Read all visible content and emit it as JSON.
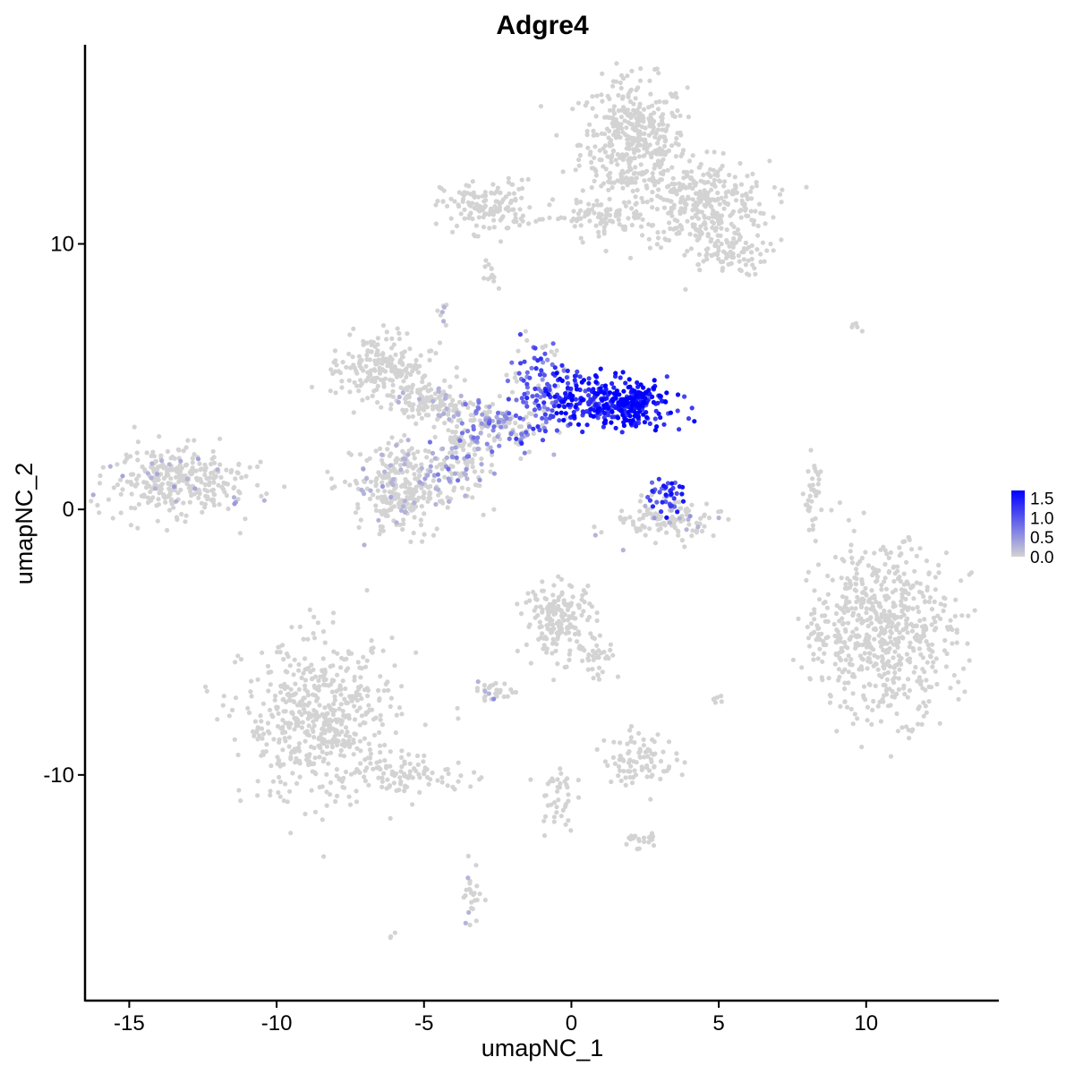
{
  "chart_data": {
    "type": "scatter",
    "title": "Adgre4",
    "xlabel": "umapNC_1",
    "ylabel": "umapNC_2",
    "xlim": [
      -16.5,
      14.5
    ],
    "ylim": [
      -18.5,
      17.5
    ],
    "x_ticks": [
      -15,
      -10,
      -5,
      0,
      5,
      10
    ],
    "x_tick_labels": [
      "-15",
      "-10",
      "-5",
      "0",
      "5",
      "10"
    ],
    "y_ticks": [
      -10,
      0,
      10
    ],
    "y_tick_labels": [
      "-10",
      "0",
      "10"
    ],
    "grid": false,
    "legend": {
      "position": "right",
      "type": "colorbar",
      "range": [
        0,
        1.7
      ],
      "ticks": [
        0.0,
        0.5,
        1.0,
        1.5
      ],
      "tick_labels": [
        "0.0",
        "0.5",
        "1.0",
        "1.5"
      ],
      "low_color": "#d3d3d3",
      "high_color": "#0000ff"
    },
    "point_color_low": "#d3d3d3",
    "point_color_high": "#0000ff",
    "clusters": [
      {
        "name": "top-right-upper",
        "cx": 2.1,
        "cy": 13.8,
        "sx": 0.9,
        "sy": 1.2,
        "n": 420,
        "expr": 0
      },
      {
        "name": "top-right-lower",
        "cx": 4.5,
        "cy": 11.5,
        "sx": 1.1,
        "sy": 0.8,
        "n": 320,
        "expr": 0
      },
      {
        "name": "top-right-tail",
        "cx": 5.2,
        "cy": 9.6,
        "sx": 0.7,
        "sy": 0.4,
        "n": 80,
        "expr": 0
      },
      {
        "name": "top-middle",
        "cx": -2.8,
        "cy": 11.4,
        "sx": 0.8,
        "sy": 0.5,
        "n": 140,
        "expr": 0
      },
      {
        "name": "top-bridge",
        "cx": 0.8,
        "cy": 11.0,
        "sx": 0.9,
        "sy": 0.3,
        "n": 80,
        "expr": 0
      },
      {
        "name": "left-small",
        "cx": -13.3,
        "cy": 1.1,
        "sx": 1.2,
        "sy": 0.6,
        "n": 330,
        "expr": 0.02
      },
      {
        "name": "center-upper-left",
        "cx": -6.4,
        "cy": 5.3,
        "sx": 0.8,
        "sy": 0.6,
        "n": 200,
        "expr": 0
      },
      {
        "name": "center-left-mid",
        "cx": -4.6,
        "cy": 4.0,
        "sx": 0.7,
        "sy": 0.4,
        "n": 140,
        "expr": 0.02
      },
      {
        "name": "center-lower-left",
        "cx": -5.6,
        "cy": 0.8,
        "sx": 0.9,
        "sy": 0.8,
        "n": 320,
        "expr": 0.04
      },
      {
        "name": "trajectory-1",
        "cx": -3.8,
        "cy": 2.0,
        "sx": 0.5,
        "sy": 0.8,
        "n": 120,
        "expr": 0.25
      },
      {
        "name": "trajectory-2",
        "cx": -2.5,
        "cy": 3.2,
        "sx": 0.6,
        "sy": 0.5,
        "n": 120,
        "expr": 0.35
      },
      {
        "name": "trajectory-3",
        "cx": -1.0,
        "cy": 4.5,
        "sx": 0.5,
        "sy": 1.0,
        "n": 130,
        "expr": 0.55
      },
      {
        "name": "high-expr",
        "cx": 1.3,
        "cy": 4.0,
        "sx": 1.0,
        "sy": 0.5,
        "n": 280,
        "expr": 0.85
      },
      {
        "name": "high-core",
        "cx": 2.0,
        "cy": 4.0,
        "sx": 0.4,
        "sy": 0.4,
        "n": 90,
        "expr": 1.0
      },
      {
        "name": "small-ring",
        "cx": 3.3,
        "cy": -0.5,
        "sx": 0.9,
        "sy": 0.4,
        "n": 110,
        "expr": 0.05
      },
      {
        "name": "small-ring-top",
        "cx": 3.2,
        "cy": 0.6,
        "sx": 0.3,
        "sy": 0.4,
        "n": 40,
        "expr": 0.7
      },
      {
        "name": "right-thin",
        "cx": 8.2,
        "cy": 0.5,
        "sx": 0.15,
        "sy": 0.7,
        "n": 35,
        "expr": 0
      },
      {
        "name": "right-big",
        "cx": 10.6,
        "cy": -4.6,
        "sx": 1.2,
        "sy": 1.6,
        "n": 620,
        "expr": 0
      },
      {
        "name": "right-big-left",
        "cx": 8.3,
        "cy": -4.7,
        "sx": 0.2,
        "sy": 0.4,
        "n": 25,
        "expr": 0
      },
      {
        "name": "bottom-middle",
        "cx": -0.4,
        "cy": -4.1,
        "sx": 0.6,
        "sy": 0.7,
        "n": 170,
        "expr": 0
      },
      {
        "name": "bottom-middle-tail",
        "cx": 0.8,
        "cy": -5.4,
        "sx": 0.4,
        "sy": 0.5,
        "n": 40,
        "expr": 0
      },
      {
        "name": "bottom-left-big",
        "cx": -8.5,
        "cy": -8.0,
        "sx": 1.3,
        "sy": 1.5,
        "n": 560,
        "expr": 0
      },
      {
        "name": "bottom-left-tail",
        "cx": -5.3,
        "cy": -10.0,
        "sx": 1.0,
        "sy": 0.3,
        "n": 80,
        "expr": 0
      },
      {
        "name": "bottom-small-1",
        "cx": -2.7,
        "cy": -6.9,
        "sx": 0.4,
        "sy": 0.2,
        "n": 30,
        "expr": 0.1
      },
      {
        "name": "bottom-small-2",
        "cx": 2.3,
        "cy": -9.4,
        "sx": 0.6,
        "sy": 0.5,
        "n": 90,
        "expr": 0
      },
      {
        "name": "bottom-strand",
        "cx": -0.5,
        "cy": -10.8,
        "sx": 0.3,
        "sy": 0.7,
        "n": 40,
        "expr": 0
      },
      {
        "name": "bottom-strand-2",
        "cx": 2.3,
        "cy": -12.4,
        "sx": 0.3,
        "sy": 0.2,
        "n": 20,
        "expr": 0
      },
      {
        "name": "bottom-lower",
        "cx": -3.4,
        "cy": -14.6,
        "sx": 0.2,
        "sy": 0.6,
        "n": 25,
        "expr": 0.05
      },
      {
        "name": "dot-tiny",
        "cx": 5.0,
        "cy": -7.2,
        "sx": 0.1,
        "sy": 0.1,
        "n": 6,
        "expr": 0
      },
      {
        "name": "dot-far-right",
        "cx": 9.7,
        "cy": 6.8,
        "sx": 0.2,
        "sy": 0.1,
        "n": 5,
        "expr": 0
      },
      {
        "name": "dot-bottom",
        "cx": -6.0,
        "cy": -16.0,
        "sx": 0.1,
        "sy": 0.1,
        "n": 3,
        "expr": 0
      },
      {
        "name": "dot-mid-top",
        "cx": -4.4,
        "cy": 7.4,
        "sx": 0.1,
        "sy": 0.2,
        "n": 8,
        "expr": 0.1
      },
      {
        "name": "dot-top-small",
        "cx": -2.7,
        "cy": 8.8,
        "sx": 0.2,
        "sy": 0.3,
        "n": 12,
        "expr": 0
      }
    ]
  }
}
